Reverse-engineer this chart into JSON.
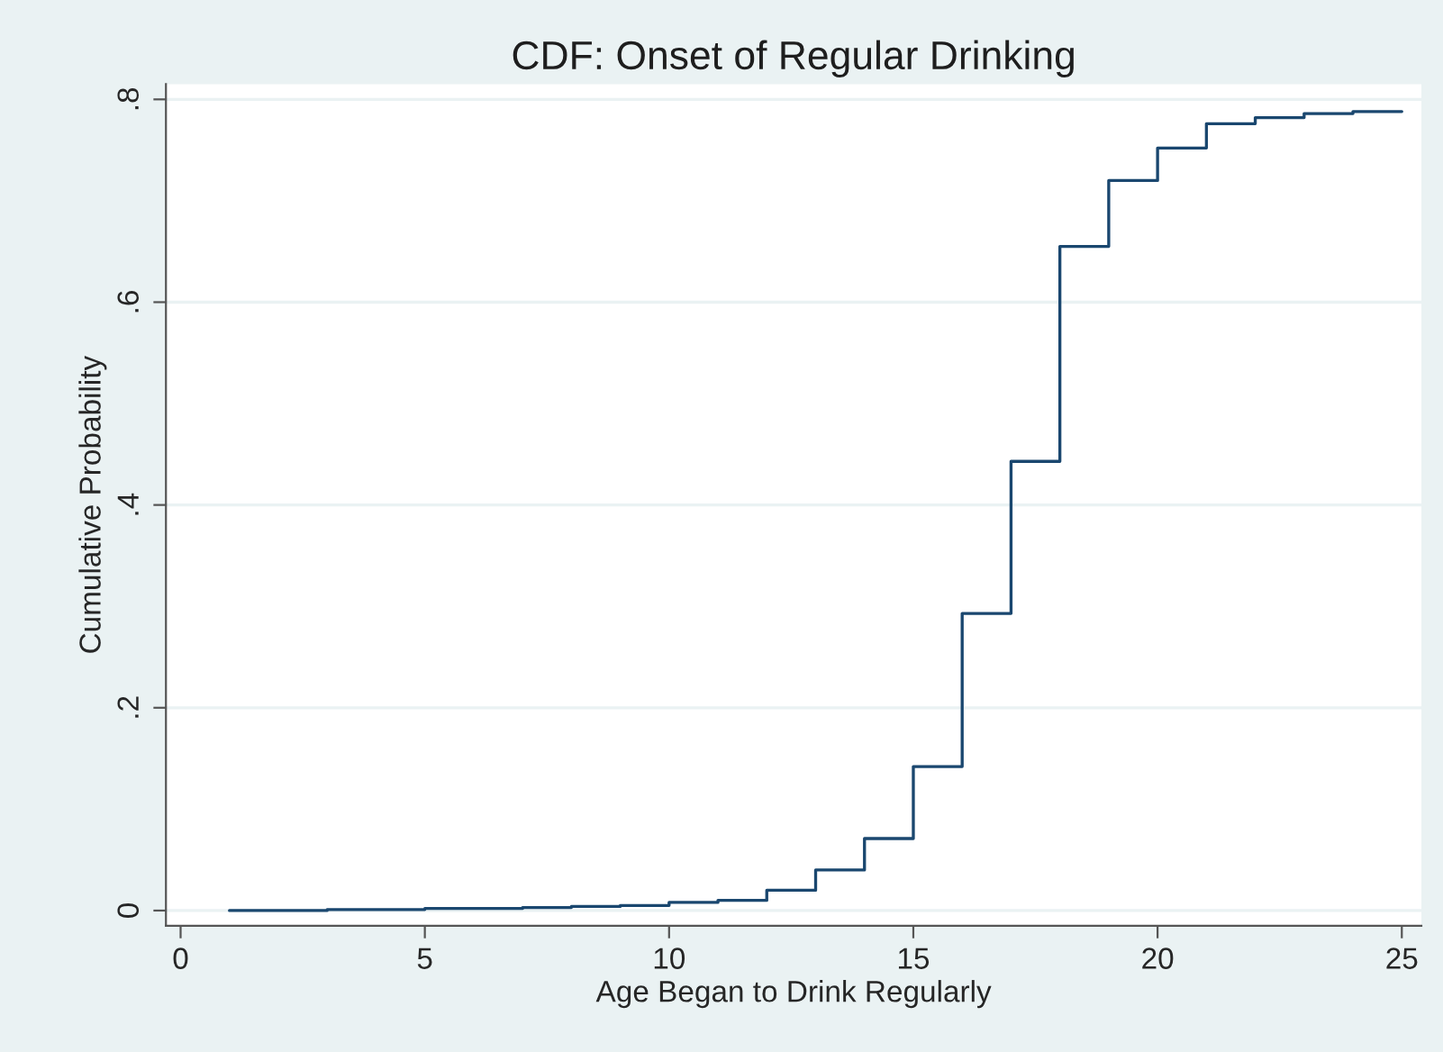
{
  "chart_data": {
    "type": "step",
    "title": "CDF: Onset of Regular Drinking",
    "xlabel": "Age Began to Drink Regularly",
    "ylabel": "Cumulative Probability",
    "x": [
      1,
      2,
      3,
      4,
      5,
      6,
      7,
      8,
      9,
      10,
      11,
      12,
      13,
      14,
      15,
      16,
      17,
      18,
      19,
      20,
      21,
      22,
      23,
      24,
      25
    ],
    "series": [
      {
        "color": "#1a476f",
        "values": [
          0.0,
          0.0,
          0.001,
          0.001,
          0.002,
          0.002,
          0.003,
          0.004,
          0.005,
          0.008,
          0.01,
          0.02,
          0.04,
          0.071,
          0.142,
          0.293,
          0.443,
          0.655,
          0.72,
          0.752,
          0.776,
          0.782,
          0.786,
          0.788,
          0.788
        ]
      }
    ],
    "xlim": [
      -0.3,
      25.4
    ],
    "ylim": [
      -0.015,
      0.815
    ],
    "xticks": [
      0,
      5,
      10,
      15,
      20,
      25
    ],
    "yticks": [
      0,
      {
        "value": 0.2,
        "label": ".2"
      },
      {
        "value": 0.4,
        "label": ".4"
      },
      {
        "value": 0.6,
        "label": ".6"
      },
      {
        "value": 0.8,
        "label": ".8"
      }
    ],
    "grid": "y",
    "legend": false
  }
}
